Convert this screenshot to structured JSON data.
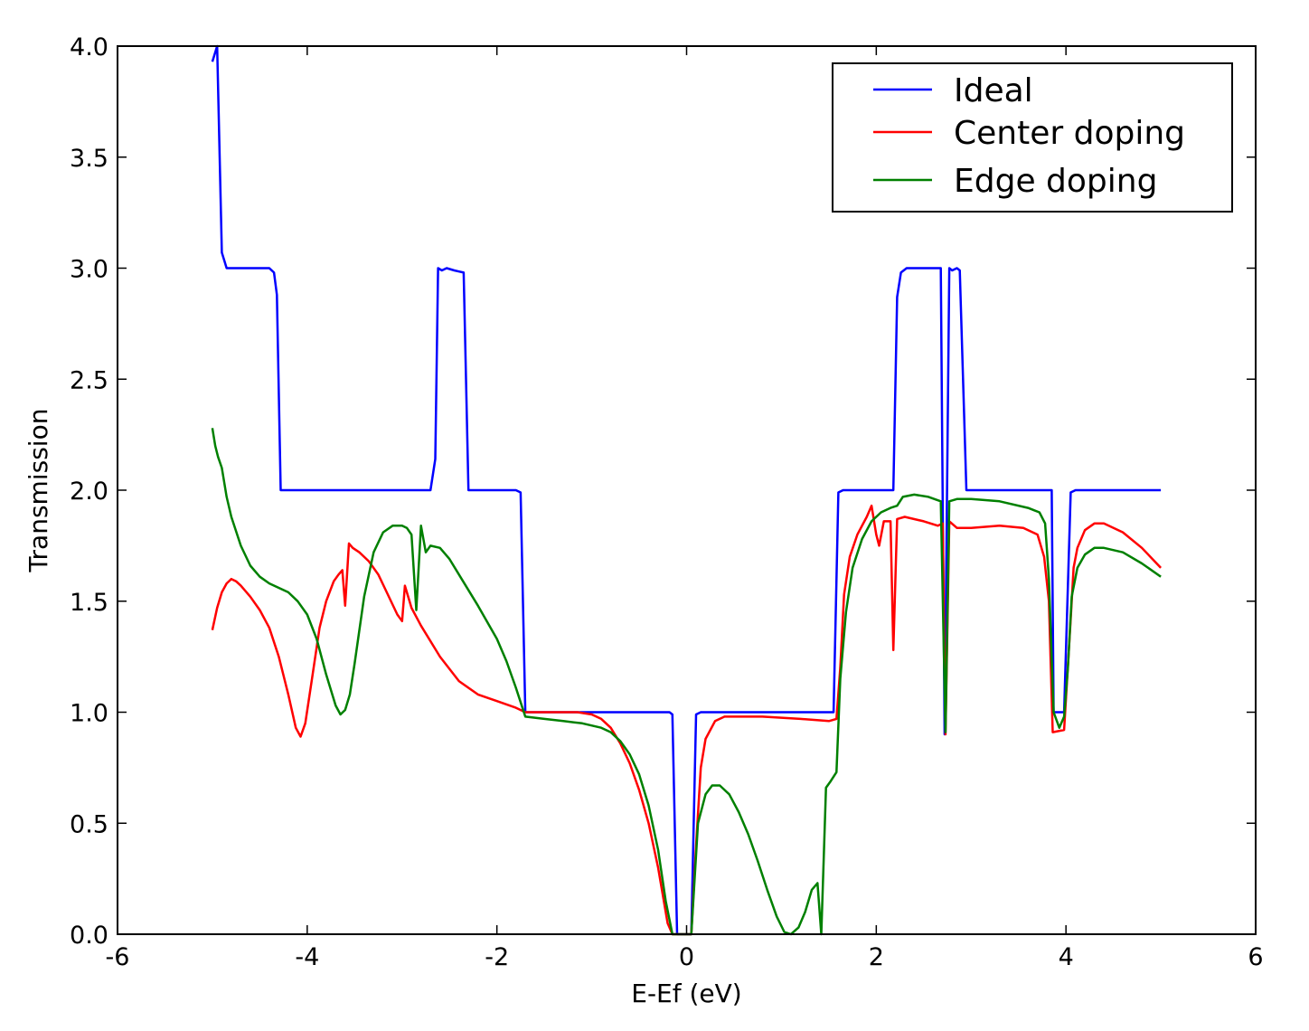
{
  "chart_data": {
    "type": "line",
    "title": "",
    "xlabel": "E-Ef (eV)",
    "ylabel": "Transmission",
    "xlim": [
      -6,
      6
    ],
    "ylim": [
      0.0,
      4.0
    ],
    "x_ticks": [
      -6,
      -4,
      -2,
      0,
      2,
      4,
      6
    ],
    "y_ticks": [
      0.0,
      0.5,
      1.0,
      1.5,
      2.0,
      2.5,
      3.0,
      3.5,
      4.0
    ],
    "x_tick_labels": [
      "-6",
      "-4",
      "-2",
      "0",
      "2",
      "4",
      "6"
    ],
    "y_tick_labels": [
      "0.0",
      "0.5",
      "1.0",
      "1.5",
      "2.0",
      "2.5",
      "3.0",
      "3.5",
      "4.0"
    ],
    "grid": false,
    "legend": {
      "placement": "top-right"
    },
    "series": [
      {
        "name": "Ideal",
        "color": "#0000ff",
        "points": [
          [
            -5.0,
            3.93
          ],
          [
            -4.95,
            4.0
          ],
          [
            -4.9,
            3.07
          ],
          [
            -4.85,
            3.0
          ],
          [
            -4.5,
            3.0
          ],
          [
            -4.4,
            3.0
          ],
          [
            -4.35,
            2.98
          ],
          [
            -4.32,
            2.88
          ],
          [
            -4.28,
            2.0
          ],
          [
            -4.0,
            2.0
          ],
          [
            -3.5,
            2.0
          ],
          [
            -3.0,
            2.0
          ],
          [
            -2.7,
            2.0
          ],
          [
            -2.65,
            2.14
          ],
          [
            -2.62,
            3.0
          ],
          [
            -2.58,
            2.99
          ],
          [
            -2.53,
            3.0
          ],
          [
            -2.45,
            2.99
          ],
          [
            -2.35,
            2.98
          ],
          [
            -2.3,
            2.0
          ],
          [
            -2.0,
            2.0
          ],
          [
            -1.8,
            2.0
          ],
          [
            -1.75,
            1.99
          ],
          [
            -1.7,
            1.0
          ],
          [
            -1.0,
            1.0
          ],
          [
            -0.3,
            1.0
          ],
          [
            -0.18,
            1.0
          ],
          [
            -0.15,
            0.99
          ],
          [
            -0.1,
            0.0
          ],
          [
            0.05,
            0.0
          ],
          [
            0.1,
            0.99
          ],
          [
            0.15,
            1.0
          ],
          [
            0.5,
            1.0
          ],
          [
            1.0,
            1.0
          ],
          [
            1.55,
            1.0
          ],
          [
            1.6,
            1.99
          ],
          [
            1.65,
            2.0
          ],
          [
            2.0,
            2.0
          ],
          [
            2.18,
            2.0
          ],
          [
            2.22,
            2.87
          ],
          [
            2.26,
            2.98
          ],
          [
            2.32,
            3.0
          ],
          [
            2.5,
            3.0
          ],
          [
            2.68,
            3.0
          ],
          [
            2.72,
            0.9
          ],
          [
            2.77,
            3.0
          ],
          [
            2.8,
            2.99
          ],
          [
            2.85,
            3.0
          ],
          [
            2.88,
            2.99
          ],
          [
            2.95,
            2.0
          ],
          [
            3.5,
            2.0
          ],
          [
            3.85,
            2.0
          ],
          [
            3.87,
            1.0
          ],
          [
            3.98,
            1.0
          ],
          [
            4.05,
            1.99
          ],
          [
            4.1,
            2.0
          ],
          [
            4.5,
            2.0
          ],
          [
            5.0,
            2.0
          ]
        ]
      },
      {
        "name": "Center doping",
        "color": "#ff0000",
        "points": [
          [
            -5.0,
            1.37
          ],
          [
            -4.95,
            1.47
          ],
          [
            -4.9,
            1.54
          ],
          [
            -4.85,
            1.58
          ],
          [
            -4.8,
            1.6
          ],
          [
            -4.75,
            1.59
          ],
          [
            -4.7,
            1.57
          ],
          [
            -4.6,
            1.52
          ],
          [
            -4.5,
            1.46
          ],
          [
            -4.4,
            1.38
          ],
          [
            -4.3,
            1.25
          ],
          [
            -4.2,
            1.08
          ],
          [
            -4.12,
            0.93
          ],
          [
            -4.07,
            0.89
          ],
          [
            -4.02,
            0.95
          ],
          [
            -3.95,
            1.15
          ],
          [
            -3.87,
            1.38
          ],
          [
            -3.8,
            1.5
          ],
          [
            -3.72,
            1.59
          ],
          [
            -3.67,
            1.62
          ],
          [
            -3.63,
            1.64
          ],
          [
            -3.6,
            1.48
          ],
          [
            -3.56,
            1.76
          ],
          [
            -3.52,
            1.74
          ],
          [
            -3.45,
            1.72
          ],
          [
            -3.35,
            1.68
          ],
          [
            -3.25,
            1.62
          ],
          [
            -3.15,
            1.53
          ],
          [
            -3.05,
            1.44
          ],
          [
            -3.0,
            1.41
          ],
          [
            -2.97,
            1.57
          ],
          [
            -2.9,
            1.47
          ],
          [
            -2.8,
            1.39
          ],
          [
            -2.6,
            1.25
          ],
          [
            -2.4,
            1.14
          ],
          [
            -2.2,
            1.08
          ],
          [
            -2.0,
            1.05
          ],
          [
            -1.8,
            1.02
          ],
          [
            -1.7,
            1.0
          ],
          [
            -1.5,
            1.0
          ],
          [
            -1.3,
            1.0
          ],
          [
            -1.15,
            1.0
          ],
          [
            -1.0,
            0.99
          ],
          [
            -0.9,
            0.97
          ],
          [
            -0.8,
            0.93
          ],
          [
            -0.7,
            0.86
          ],
          [
            -0.6,
            0.77
          ],
          [
            -0.5,
            0.65
          ],
          [
            -0.4,
            0.5
          ],
          [
            -0.3,
            0.3
          ],
          [
            -0.2,
            0.05
          ],
          [
            -0.15,
            0.0
          ],
          [
            0.05,
            0.0
          ],
          [
            0.1,
            0.4
          ],
          [
            0.15,
            0.75
          ],
          [
            0.2,
            0.88
          ],
          [
            0.3,
            0.96
          ],
          [
            0.4,
            0.98
          ],
          [
            0.8,
            0.98
          ],
          [
            1.2,
            0.97
          ],
          [
            1.5,
            0.96
          ],
          [
            1.58,
            0.97
          ],
          [
            1.62,
            1.2
          ],
          [
            1.66,
            1.53
          ],
          [
            1.72,
            1.7
          ],
          [
            1.8,
            1.8
          ],
          [
            1.9,
            1.88
          ],
          [
            1.95,
            1.93
          ],
          [
            2.0,
            1.8
          ],
          [
            2.03,
            1.75
          ],
          [
            2.08,
            1.86
          ],
          [
            2.15,
            1.86
          ],
          [
            2.18,
            1.28
          ],
          [
            2.22,
            1.87
          ],
          [
            2.3,
            1.88
          ],
          [
            2.5,
            1.86
          ],
          [
            2.65,
            1.84
          ],
          [
            2.7,
            1.85
          ],
          [
            2.73,
            0.9
          ],
          [
            2.77,
            1.86
          ],
          [
            2.85,
            1.83
          ],
          [
            3.0,
            1.83
          ],
          [
            3.3,
            1.84
          ],
          [
            3.55,
            1.83
          ],
          [
            3.7,
            1.8
          ],
          [
            3.77,
            1.7
          ],
          [
            3.82,
            1.5
          ],
          [
            3.86,
            0.91
          ],
          [
            3.98,
            0.92
          ],
          [
            4.05,
            1.42
          ],
          [
            4.08,
            1.65
          ],
          [
            4.12,
            1.74
          ],
          [
            4.2,
            1.82
          ],
          [
            4.3,
            1.85
          ],
          [
            4.4,
            1.85
          ],
          [
            4.6,
            1.81
          ],
          [
            4.8,
            1.74
          ],
          [
            5.0,
            1.65
          ]
        ]
      },
      {
        "name": "Edge doping",
        "color": "#008000",
        "points": [
          [
            -5.0,
            2.28
          ],
          [
            -4.97,
            2.2
          ],
          [
            -4.94,
            2.15
          ],
          [
            -4.9,
            2.1
          ],
          [
            -4.85,
            1.97
          ],
          [
            -4.8,
            1.88
          ],
          [
            -4.7,
            1.75
          ],
          [
            -4.6,
            1.66
          ],
          [
            -4.5,
            1.61
          ],
          [
            -4.4,
            1.58
          ],
          [
            -4.3,
            1.56
          ],
          [
            -4.2,
            1.54
          ],
          [
            -4.1,
            1.5
          ],
          [
            -4.0,
            1.44
          ],
          [
            -3.9,
            1.33
          ],
          [
            -3.8,
            1.17
          ],
          [
            -3.7,
            1.03
          ],
          [
            -3.65,
            0.99
          ],
          [
            -3.6,
            1.01
          ],
          [
            -3.55,
            1.08
          ],
          [
            -3.5,
            1.22
          ],
          [
            -3.4,
            1.52
          ],
          [
            -3.3,
            1.72
          ],
          [
            -3.2,
            1.81
          ],
          [
            -3.1,
            1.84
          ],
          [
            -3.0,
            1.84
          ],
          [
            -2.95,
            1.83
          ],
          [
            -2.9,
            1.8
          ],
          [
            -2.85,
            1.46
          ],
          [
            -2.8,
            1.84
          ],
          [
            -2.75,
            1.72
          ],
          [
            -2.7,
            1.75
          ],
          [
            -2.6,
            1.74
          ],
          [
            -2.5,
            1.69
          ],
          [
            -2.4,
            1.62
          ],
          [
            -2.2,
            1.48
          ],
          [
            -2.0,
            1.33
          ],
          [
            -1.9,
            1.23
          ],
          [
            -1.8,
            1.11
          ],
          [
            -1.7,
            0.98
          ],
          [
            -1.5,
            0.97
          ],
          [
            -1.3,
            0.96
          ],
          [
            -1.1,
            0.95
          ],
          [
            -0.9,
            0.93
          ],
          [
            -0.8,
            0.91
          ],
          [
            -0.7,
            0.87
          ],
          [
            -0.6,
            0.81
          ],
          [
            -0.5,
            0.72
          ],
          [
            -0.4,
            0.58
          ],
          [
            -0.3,
            0.38
          ],
          [
            -0.22,
            0.15
          ],
          [
            -0.15,
            0.0
          ],
          [
            0.05,
            0.0
          ],
          [
            0.12,
            0.5
          ],
          [
            0.2,
            0.63
          ],
          [
            0.27,
            0.67
          ],
          [
            0.35,
            0.67
          ],
          [
            0.45,
            0.63
          ],
          [
            0.55,
            0.55
          ],
          [
            0.65,
            0.45
          ],
          [
            0.75,
            0.33
          ],
          [
            0.85,
            0.2
          ],
          [
            0.95,
            0.08
          ],
          [
            1.03,
            0.01
          ],
          [
            1.1,
            0.0
          ],
          [
            1.18,
            0.03
          ],
          [
            1.25,
            0.1
          ],
          [
            1.32,
            0.2
          ],
          [
            1.38,
            0.23
          ],
          [
            1.42,
            0.0
          ],
          [
            1.47,
            0.66
          ],
          [
            1.52,
            0.69
          ],
          [
            1.58,
            0.73
          ],
          [
            1.62,
            1.15
          ],
          [
            1.68,
            1.45
          ],
          [
            1.75,
            1.65
          ],
          [
            1.85,
            1.78
          ],
          [
            1.95,
            1.86
          ],
          [
            2.05,
            1.9
          ],
          [
            2.15,
            1.92
          ],
          [
            2.22,
            1.93
          ],
          [
            2.28,
            1.97
          ],
          [
            2.4,
            1.98
          ],
          [
            2.55,
            1.97
          ],
          [
            2.68,
            1.95
          ],
          [
            2.73,
            0.91
          ],
          [
            2.77,
            1.95
          ],
          [
            2.85,
            1.96
          ],
          [
            3.0,
            1.96
          ],
          [
            3.3,
            1.95
          ],
          [
            3.6,
            1.92
          ],
          [
            3.72,
            1.9
          ],
          [
            3.78,
            1.85
          ],
          [
            3.82,
            1.6
          ],
          [
            3.87,
            1.0
          ],
          [
            3.93,
            0.93
          ],
          [
            3.98,
            0.98
          ],
          [
            4.02,
            1.2
          ],
          [
            4.06,
            1.52
          ],
          [
            4.12,
            1.65
          ],
          [
            4.2,
            1.71
          ],
          [
            4.3,
            1.74
          ],
          [
            4.4,
            1.74
          ],
          [
            4.6,
            1.72
          ],
          [
            4.8,
            1.67
          ],
          [
            5.0,
            1.61
          ]
        ]
      }
    ]
  }
}
